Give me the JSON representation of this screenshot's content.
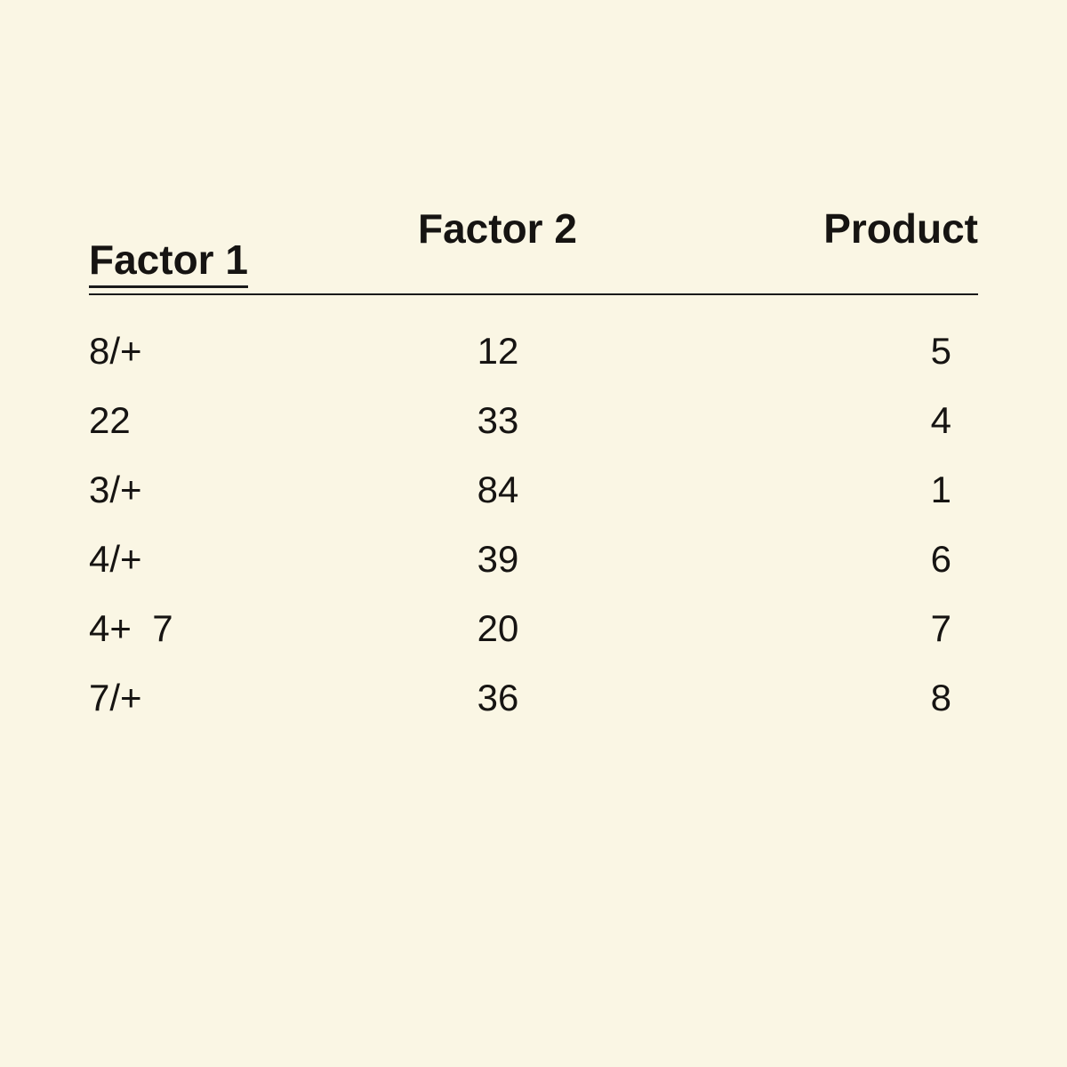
{
  "table": {
    "type": "table",
    "background_color": "#faf6e4",
    "text_color": "#161412",
    "header_fontsize": 46,
    "body_fontsize": 42,
    "header_fontweight": 700,
    "rule_color": "#1a1a1a",
    "columns": {
      "factor1": "Factor 1",
      "factor2": "Factor 2",
      "product": "Product"
    },
    "rows": [
      {
        "factor1": "8/+",
        "factor2": "12",
        "product": "5"
      },
      {
        "factor1": "22",
        "factor2": "33",
        "product": "4"
      },
      {
        "factor1": "3/+",
        "factor2": "84",
        "product": "1"
      },
      {
        "factor1": "4/+",
        "factor2": "39",
        "product": "6"
      },
      {
        "factor1": "4+  7",
        "factor2": "20",
        "product": "7"
      },
      {
        "factor1": "7/+",
        "factor2": "36",
        "product": "8"
      }
    ]
  }
}
